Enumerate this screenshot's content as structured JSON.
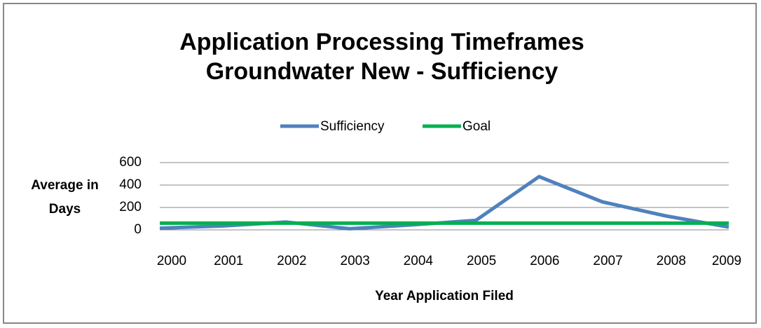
{
  "chart_data": {
    "type": "line",
    "title": "Application Processing Timeframes",
    "subtitle": "Groundwater New - Sufficiency",
    "y_label": "Average in Days",
    "x_label": "Year Application Filed",
    "categories": [
      "2000",
      "2001",
      "2002",
      "2003",
      "2004",
      "2005",
      "2006",
      "2007",
      "2008",
      "2009"
    ],
    "series": [
      {
        "name": "Sufficiency",
        "color": "#4f81bd",
        "values": [
          15,
          35,
          70,
          10,
          45,
          85,
          475,
          250,
          125,
          25
        ]
      },
      {
        "name": "Goal",
        "color": "#00b050",
        "values": [
          60,
          60,
          60,
          60,
          60,
          60,
          60,
          60,
          60,
          60
        ]
      }
    ],
    "ylim": [
      0,
      600
    ],
    "yticks": [
      0,
      200,
      400,
      600
    ],
    "grid": true,
    "legend": "top"
  }
}
